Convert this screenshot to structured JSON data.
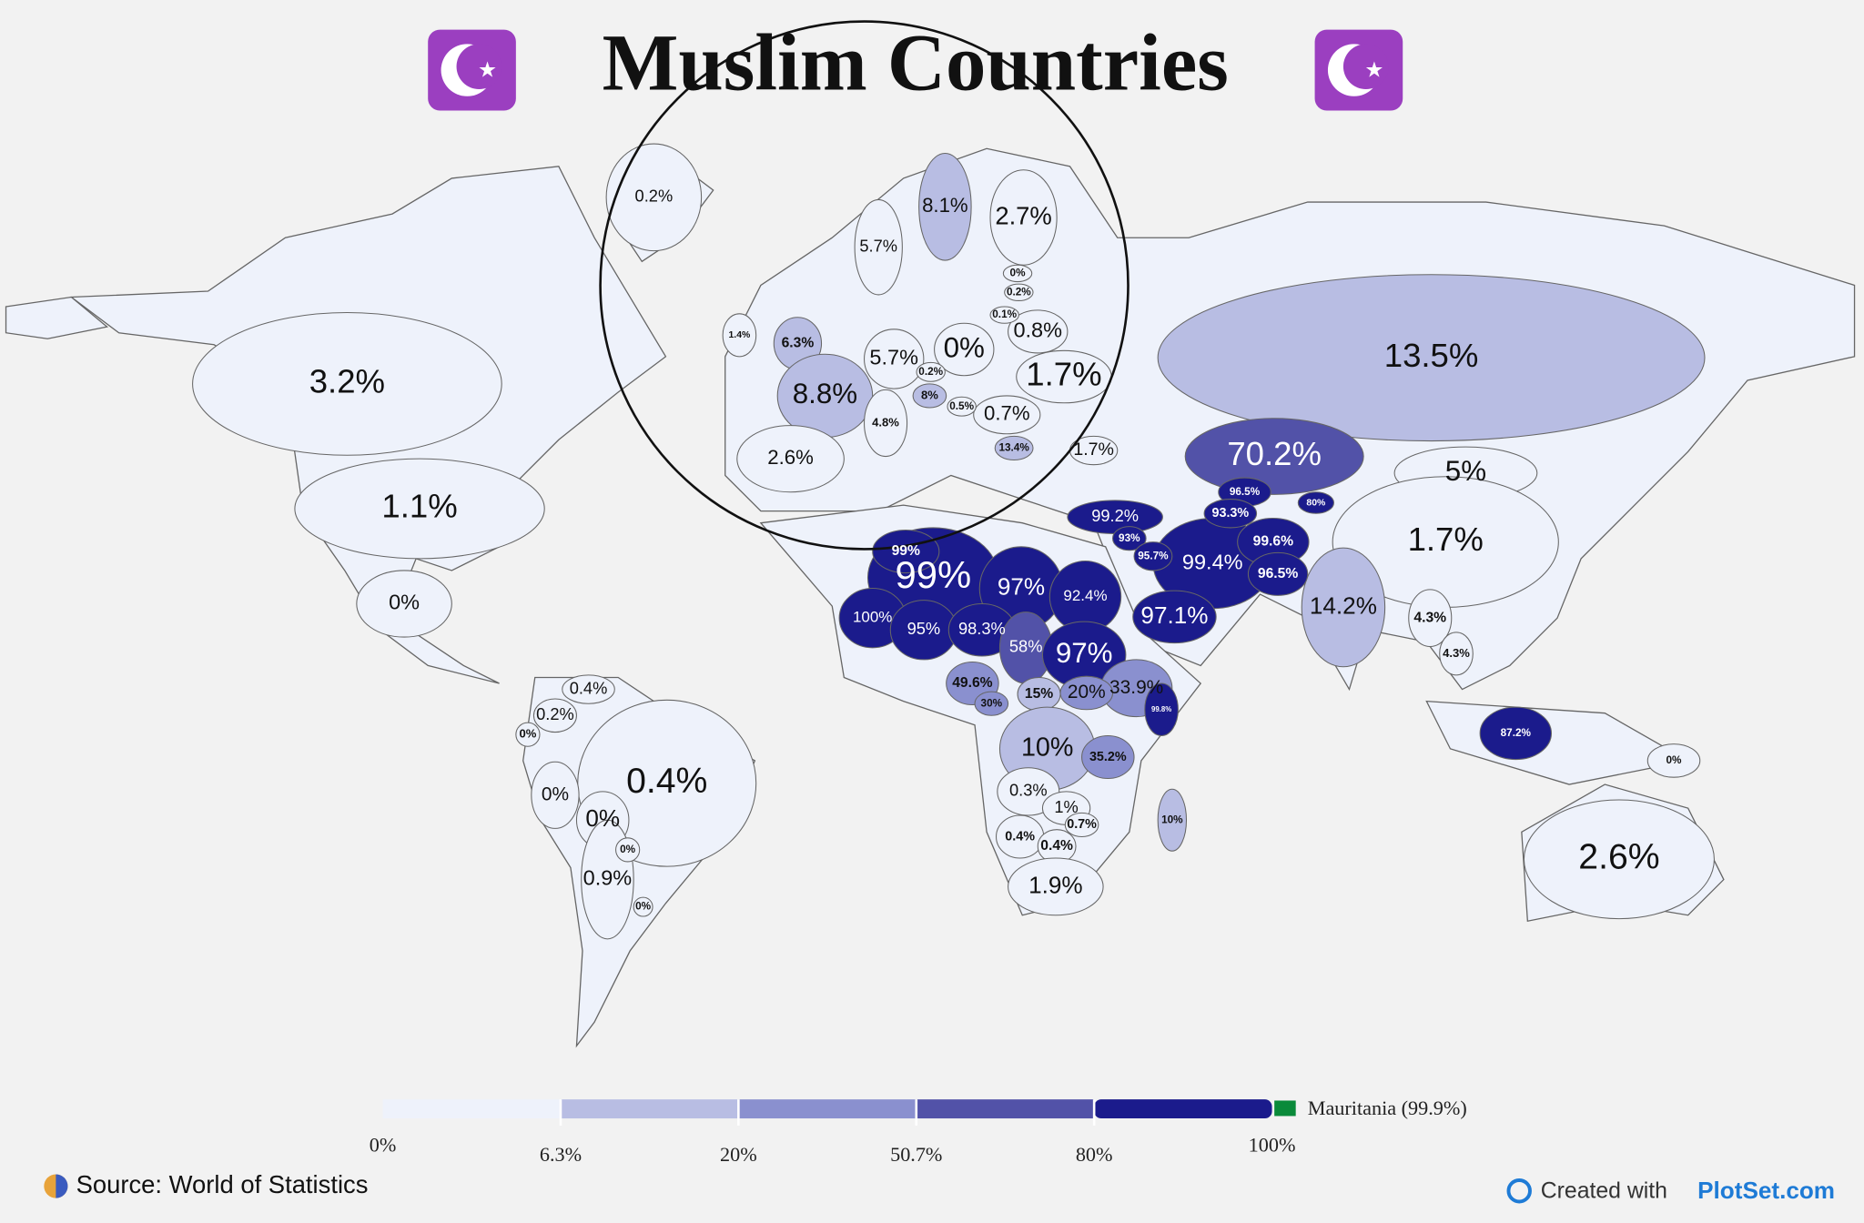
{
  "map": {
    "title": "Muslim Countries",
    "regions": [
      {
        "value": 3.2,
        "label": "3.2%"
      },
      {
        "value": 1.1,
        "label": "1.1%"
      },
      {
        "value": 0,
        "label": "0%"
      },
      {
        "value": 0.2,
        "label": "0.2%"
      },
      {
        "value": 13.5,
        "label": "13.5%"
      },
      {
        "value": 70.2,
        "label": "70.2%"
      },
      {
        "value": 5,
        "label": "5%"
      },
      {
        "value": 1.7,
        "label": "1.7%"
      },
      {
        "value": 14.2,
        "label": "14.2%"
      },
      {
        "value": 99.4,
        "label": "99.4%"
      },
      {
        "value": 97.1,
        "label": "97.1%"
      },
      {
        "value": 99.2,
        "label": "99.2%"
      },
      {
        "value": 93,
        "label": "93%"
      },
      {
        "value": 95.7,
        "label": "95.7%"
      },
      {
        "value": 99.6,
        "label": "99.6%"
      },
      {
        "value": 96.5,
        "label": "96.5%"
      },
      {
        "value": 96.5,
        "label": "96.5%"
      },
      {
        "value": 93.3,
        "label": "93.3%"
      },
      {
        "value": 80,
        "label": "80%"
      },
      {
        "value": 99,
        "label": "99%"
      },
      {
        "value": 99,
        "label": "99%"
      },
      {
        "value": 97,
        "label": "97%"
      },
      {
        "value": 92.4,
        "label": "92.4%"
      },
      {
        "value": 100,
        "label": "100%"
      },
      {
        "value": 95,
        "label": "95%"
      },
      {
        "value": 98.3,
        "label": "98.3%"
      },
      {
        "value": 58,
        "label": "58%"
      },
      {
        "value": 97,
        "label": "97%"
      },
      {
        "value": 33.9,
        "label": "33.9%"
      },
      {
        "value": 15,
        "label": "15%"
      },
      {
        "value": 20,
        "label": "20%"
      },
      {
        "value": 49.6,
        "label": "49.6%"
      },
      {
        "value": 30,
        "label": "30%"
      },
      {
        "value": 10,
        "label": "10%"
      },
      {
        "value": 35.2,
        "label": "35.2%"
      },
      {
        "value": 0.3,
        "label": "0.3%"
      },
      {
        "value": 1,
        "label": "1%"
      },
      {
        "value": 0.7,
        "label": "0.7%"
      },
      {
        "value": 0.4,
        "label": "0.4%"
      },
      {
        "value": 0.4,
        "label": "0.4%"
      },
      {
        "value": 1.9,
        "label": "1.9%"
      },
      {
        "value": 10,
        "label": "10%"
      },
      {
        "value": 99.8,
        "label": "99.8%"
      },
      {
        "value": 87.2,
        "label": "87.2%"
      },
      {
        "value": 0,
        "label": "0%"
      },
      {
        "value": 2.6,
        "label": "2.6%"
      },
      {
        "value": 0.4,
        "label": "0.4%"
      },
      {
        "value": 0.4,
        "label": "0.4%"
      },
      {
        "value": 0.2,
        "label": "0.2%"
      },
      {
        "value": 0,
        "label": "0%"
      },
      {
        "value": 0,
        "label": "0%"
      },
      {
        "value": 0,
        "label": "0%"
      },
      {
        "value": 0.9,
        "label": "0.9%"
      },
      {
        "value": 0,
        "label": "0%"
      },
      {
        "value": 0,
        "label": "0%"
      },
      {
        "value": 4.3,
        "label": "4.3%"
      },
      {
        "value": 4.3,
        "label": "4.3%"
      },
      {
        "value": 8.1,
        "label": "8.1%"
      },
      {
        "value": 2.7,
        "label": "2.7%"
      },
      {
        "value": 5.7,
        "label": "5.7%"
      },
      {
        "value": 6.3,
        "label": "6.3%"
      },
      {
        "value": 5.7,
        "label": "5.7%"
      },
      {
        "value": 0,
        "label": "0%"
      },
      {
        "value": 0.8,
        "label": "0.8%"
      },
      {
        "value": 1.7,
        "label": "1.7%"
      },
      {
        "value": 8.8,
        "label": "8.8%"
      },
      {
        "value": 2.6,
        "label": "2.6%"
      },
      {
        "value": 0.7,
        "label": "0.7%"
      },
      {
        "value": 4.8,
        "label": "4.8%"
      },
      {
        "value": 8,
        "label": "8%"
      },
      {
        "value": 13.4,
        "label": "13.4%"
      },
      {
        "value": 1.7,
        "label": "1.7%"
      },
      {
        "value": 0,
        "label": "0%"
      },
      {
        "value": 0.2,
        "label": "0.2%"
      },
      {
        "value": 0.1,
        "label": "0.1%"
      },
      {
        "value": 0.2,
        "label": "0.2%"
      },
      {
        "value": 0.5,
        "label": "0.5%"
      },
      {
        "value": 1.4,
        "label": "1.4%"
      }
    ],
    "legend": {
      "ticks": [
        {
          "value": 0,
          "label": "0%"
        },
        {
          "value": 6.3,
          "label": "6.3%"
        },
        {
          "value": 20,
          "label": "20%"
        },
        {
          "value": 50.7,
          "label": "50.7%"
        },
        {
          "value": 80,
          "label": "80%"
        },
        {
          "value": 100,
          "label": "100%"
        }
      ],
      "colors": [
        "#eef2fb",
        "#b8bde3",
        "#8a90cf",
        "#5252a8",
        "#1b1b8c"
      ],
      "highlight": "Mauritania (99.9%)"
    },
    "source": "Source: World of Statistics",
    "credit": {
      "prefix": "Created with",
      "brand": "PlotSet.com"
    }
  }
}
